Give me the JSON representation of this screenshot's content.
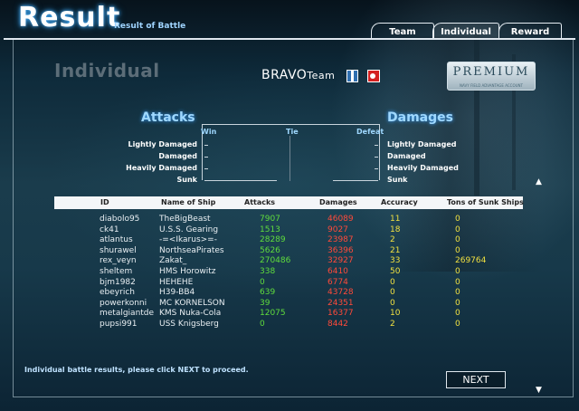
{
  "header": {
    "title": "Result",
    "subtitle": "Result of Battle"
  },
  "tabs": [
    {
      "label": "Team"
    },
    {
      "label": "Individual"
    },
    {
      "label": "Reward"
    }
  ],
  "section_title": "Individual",
  "team": {
    "name_main": "BRAVO",
    "name_suffix": "Team"
  },
  "badge": {
    "text": "PREMIUM",
    "fine_print": "NAVY FIELD ADVANTAGE ACCOUNT"
  },
  "comparison": {
    "attacks_label": "Attacks",
    "damages_label": "Damages",
    "columns": [
      "Win",
      "Tie",
      "Defeat"
    ],
    "levels": [
      "Lightly Damaged",
      "Damaged",
      "Heavily Damaged",
      "Sunk"
    ]
  },
  "table": {
    "columns": [
      "ID",
      "Name of Ship",
      "Attacks",
      "Damages",
      "Accuracy",
      "Tons of Sunk Ships"
    ],
    "rows": [
      {
        "id": "diabolo95",
        "ship": "TheBigBeast",
        "attacks": "7907",
        "damages": "46089",
        "accuracy": "11",
        "tons": "0"
      },
      {
        "id": "ck41",
        "ship": "U.S.S. Gearing",
        "attacks": "1513",
        "damages": "9027",
        "accuracy": "18",
        "tons": "0"
      },
      {
        "id": "atlantus",
        "ship": "-=<Ikarus>=-",
        "attacks": "28289",
        "damages": "23987",
        "accuracy": "2",
        "tons": "0"
      },
      {
        "id": "shurawel",
        "ship": "NorthseaPirates",
        "attacks": "5626",
        "damages": "36396",
        "accuracy": "21",
        "tons": "0"
      },
      {
        "id": "rex_veyn",
        "ship": "Zakat_",
        "attacks": "270486",
        "damages": "32927",
        "accuracy": "33",
        "tons": "269764"
      },
      {
        "id": "sheltem",
        "ship": "HMS Horowitz",
        "attacks": "338",
        "damages": "6410",
        "accuracy": "50",
        "tons": "0"
      },
      {
        "id": "bjm1982",
        "ship": "HEHEHE",
        "attacks": "0",
        "damages": "6774",
        "accuracy": "0",
        "tons": "0"
      },
      {
        "id": "ebeyrich",
        "ship": "H39-BB4",
        "attacks": "639",
        "damages": "43728",
        "accuracy": "0",
        "tons": "0"
      },
      {
        "id": "powerkonni",
        "ship": "MC KORNELSON",
        "attacks": "39",
        "damages": "24351",
        "accuracy": "0",
        "tons": "0"
      },
      {
        "id": "metalgiantde",
        "ship": "KMS Nuka-Cola",
        "attacks": "12075",
        "damages": "16377",
        "accuracy": "10",
        "tons": "0"
      },
      {
        "id": "pupsi991",
        "ship": "USS Knigsberg",
        "attacks": "0",
        "damages": "8442",
        "accuracy": "2",
        "tons": "0"
      }
    ]
  },
  "footer": {
    "hint": "Individual battle results, please click NEXT to proceed.",
    "next_label": "NEXT"
  },
  "icons": {
    "scroll_up": "▲",
    "scroll_down": "▼"
  }
}
